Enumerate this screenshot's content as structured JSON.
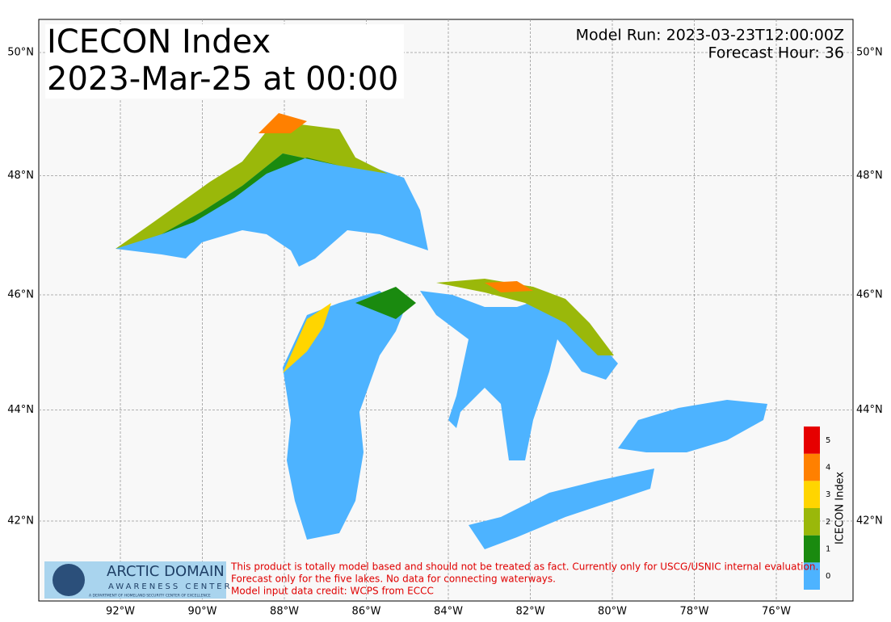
{
  "header": {
    "title": "ICECON Index",
    "valid_time": "2023-Mar-25 at 00:00",
    "model_run": "Model Run: 2023-03-23T12:00:00Z",
    "forecast_hour": "Forecast Hour: 36"
  },
  "map": {
    "grid": true,
    "lon_ticks": [
      {
        "value": -92,
        "label": "92°W"
      },
      {
        "value": -90,
        "label": "90°W"
      },
      {
        "value": -88,
        "label": "88°W"
      },
      {
        "value": -86,
        "label": "86°W"
      },
      {
        "value": -84,
        "label": "84°W"
      },
      {
        "value": -82,
        "label": "82°W"
      },
      {
        "value": -80,
        "label": "80°W"
      },
      {
        "value": -78,
        "label": "78°W"
      },
      {
        "value": -76,
        "label": "76°W"
      }
    ],
    "lat_ticks": [
      {
        "value": 42,
        "label": "42°N"
      },
      {
        "value": 44,
        "label": "44°N"
      },
      {
        "value": 46,
        "label": "46°N"
      },
      {
        "value": 48,
        "label": "48°N"
      },
      {
        "value": 50,
        "label": "50°N"
      }
    ]
  },
  "colorbar": {
    "label": "ICECON Index",
    "ticks": [
      0,
      1,
      2,
      3,
      4,
      5
    ],
    "colors": [
      "#4db3ff",
      "#1a8a0f",
      "#9ab80a",
      "#ffd500",
      "#ff8000",
      "#e60000"
    ]
  },
  "logo": {
    "name": "ARCTIC DOMAIN",
    "subname": "AWARENESS CENTER",
    "tagline": "A DEPARTMENT OF HOMELAND SECURITY CENTER OF EXCELLENCE"
  },
  "disclaimer": [
    "This product is totally model based and should not be treated as fact. Currently only for USCG/USNIC internal evaluation.",
    "Forecast only for the five lakes. No data for connecting waterways.",
    "Model input data credit: WCPS from ECCC"
  ]
}
